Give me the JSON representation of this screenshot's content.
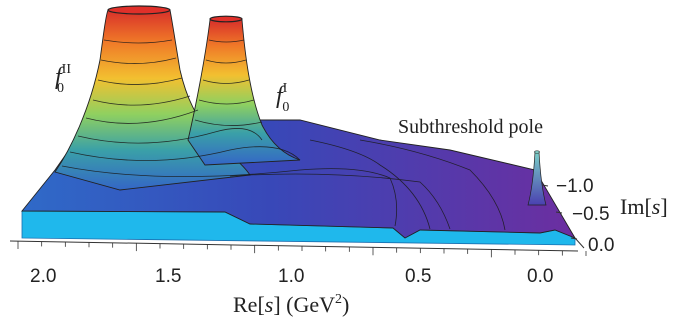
{
  "chart_data": {
    "type": "surface-3d",
    "annotations": {
      "pole_II": {
        "base": "f",
        "sub": "0",
        "sup": "II"
      },
      "pole_I": {
        "base": "f",
        "sub": "0",
        "sup": "I"
      },
      "subthreshold": "Subthreshold pole"
    },
    "re_axis": {
      "label_main": "Re[",
      "label_var": "s",
      "label_close": "] (GeV",
      "label_exp": "2",
      "label_end": ")",
      "ticks": [
        "2.0",
        "1.5",
        "1.0",
        "0.5",
        "0.0"
      ]
    },
    "im_axis": {
      "label_main": "Im[",
      "label_var": "s",
      "label_close": "]",
      "ticks": [
        "−1.0",
        "−0.5",
        "0.0"
      ]
    },
    "colors": {
      "peak_top": "#e0302a",
      "peak_mid": "#f2c030",
      "peak_low": "#8fd060",
      "surface_mid": "#3a66c8",
      "surface_far": "#6a2ea0",
      "floor": "#1fb8ec"
    }
  }
}
